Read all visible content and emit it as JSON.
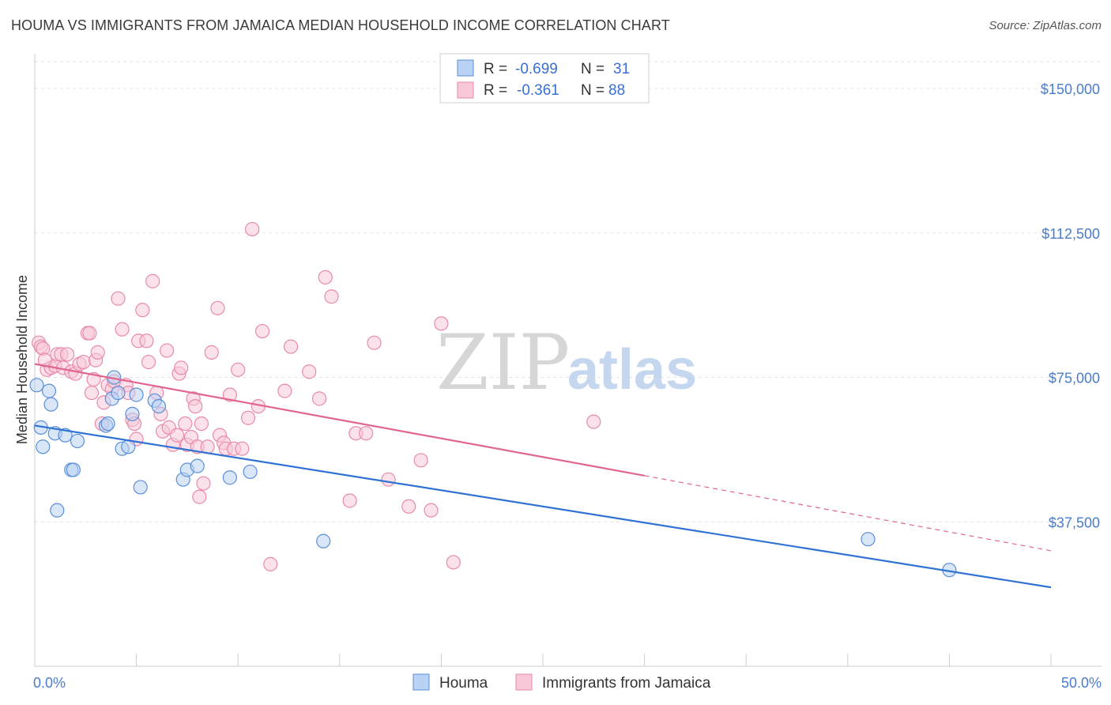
{
  "title": "HOUMA VS IMMIGRANTS FROM JAMAICA MEDIAN HOUSEHOLD INCOME CORRELATION CHART",
  "source": "Source: ZipAtlas.com",
  "watermark": {
    "zip": "ZIP",
    "atlas": "atlas"
  },
  "chart_data": {
    "type": "scatter",
    "title": "HOUMA VS IMMIGRANTS FROM JAMAICA MEDIAN HOUSEHOLD INCOME CORRELATION CHART",
    "xlabel": "",
    "ylabel": "Median Household Income",
    "xlim": [
      0,
      50
    ],
    "ylim": [
      0,
      157000
    ],
    "x_tick_labels": [
      {
        "value": 0,
        "label": "0.0%"
      },
      {
        "value": 50,
        "label": "50.0%"
      }
    ],
    "y_ticks": [
      {
        "value": 37500,
        "label": "$37,500"
      },
      {
        "value": 75000,
        "label": "$75,000"
      },
      {
        "value": 112500,
        "label": "$112,500"
      },
      {
        "value": 150000,
        "label": "$150,000"
      }
    ],
    "grid": true,
    "legend_placement": "top-center",
    "series": [
      {
        "name": "Houma",
        "color": "#5b8fd9",
        "fill": "#b9d2f3",
        "line_color": "#2f72d4",
        "R": "-0.699",
        "N": "31",
        "trend": {
          "x": [
            0,
            50
          ],
          "y": [
            62500,
            20500
          ]
        },
        "points": [
          [
            0.1,
            73000
          ],
          [
            0.4,
            57000
          ],
          [
            0.7,
            71500
          ],
          [
            0.8,
            68000
          ],
          [
            1.0,
            60500
          ],
          [
            1.1,
            40500
          ],
          [
            1.5,
            60000
          ],
          [
            1.8,
            51000
          ],
          [
            1.9,
            51000
          ],
          [
            2.1,
            58500
          ],
          [
            3.5,
            62500
          ],
          [
            3.6,
            63000
          ],
          [
            3.8,
            69500
          ],
          [
            3.9,
            75000
          ],
          [
            4.1,
            71000
          ],
          [
            4.3,
            56500
          ],
          [
            4.6,
            57000
          ],
          [
            4.8,
            65500
          ],
          [
            5.0,
            70500
          ],
          [
            5.2,
            46500
          ],
          [
            5.9,
            69000
          ],
          [
            6.1,
            67500
          ],
          [
            7.3,
            48500
          ],
          [
            7.5,
            51000
          ],
          [
            8.0,
            52000
          ],
          [
            9.6,
            49000
          ],
          [
            10.6,
            50500
          ],
          [
            14.2,
            32500
          ],
          [
            41.0,
            33000
          ],
          [
            45.0,
            25000
          ],
          [
            0.3,
            62000
          ]
        ]
      },
      {
        "name": "Immigrants from Jamaica",
        "color": "#e98aaa",
        "fill": "#f8c8d8",
        "line_color": "#e06690",
        "R": "-0.361",
        "N": "88",
        "trend": {
          "x": [
            0,
            30
          ],
          "y": [
            78500,
            49500
          ]
        },
        "trend_dashed": {
          "x": [
            30,
            50
          ],
          "y": [
            49500,
            30000
          ]
        },
        "points": [
          [
            0.2,
            84000
          ],
          [
            0.3,
            83000
          ],
          [
            0.4,
            82500
          ],
          [
            0.6,
            77000
          ],
          [
            0.8,
            77500
          ],
          [
            1.0,
            78000
          ],
          [
            1.1,
            81000
          ],
          [
            1.3,
            81000
          ],
          [
            1.4,
            77500
          ],
          [
            1.6,
            81000
          ],
          [
            1.8,
            76500
          ],
          [
            2.0,
            76000
          ],
          [
            2.2,
            78500
          ],
          [
            2.4,
            79000
          ],
          [
            2.6,
            86500
          ],
          [
            2.7,
            86500
          ],
          [
            2.8,
            71000
          ],
          [
            2.9,
            74500
          ],
          [
            3.0,
            79500
          ],
          [
            3.1,
            81500
          ],
          [
            3.3,
            63000
          ],
          [
            3.4,
            68500
          ],
          [
            3.6,
            73000
          ],
          [
            3.8,
            72000
          ],
          [
            3.9,
            74000
          ],
          [
            4.1,
            95500
          ],
          [
            4.3,
            87500
          ],
          [
            4.5,
            73000
          ],
          [
            4.6,
            71000
          ],
          [
            4.8,
            64000
          ],
          [
            4.9,
            63000
          ],
          [
            5.0,
            59000
          ],
          [
            5.1,
            84500
          ],
          [
            5.3,
            92500
          ],
          [
            5.5,
            84500
          ],
          [
            5.6,
            79000
          ],
          [
            5.8,
            100000
          ],
          [
            6.0,
            71000
          ],
          [
            6.2,
            65500
          ],
          [
            6.3,
            61000
          ],
          [
            6.5,
            82000
          ],
          [
            6.6,
            62000
          ],
          [
            6.8,
            57500
          ],
          [
            7.0,
            60000
          ],
          [
            7.1,
            76000
          ],
          [
            7.2,
            77500
          ],
          [
            7.4,
            63000
          ],
          [
            7.5,
            57500
          ],
          [
            7.7,
            59500
          ],
          [
            7.8,
            69500
          ],
          [
            7.9,
            67500
          ],
          [
            8.0,
            57000
          ],
          [
            8.1,
            44000
          ],
          [
            8.2,
            63000
          ],
          [
            8.3,
            47500
          ],
          [
            8.5,
            57000
          ],
          [
            8.7,
            81500
          ],
          [
            9.0,
            93000
          ],
          [
            9.1,
            60000
          ],
          [
            9.3,
            58000
          ],
          [
            9.4,
            56500
          ],
          [
            9.6,
            70500
          ],
          [
            9.8,
            56500
          ],
          [
            10.0,
            77000
          ],
          [
            10.2,
            56500
          ],
          [
            10.5,
            64500
          ],
          [
            10.7,
            113500
          ],
          [
            11.0,
            67500
          ],
          [
            11.2,
            87000
          ],
          [
            11.6,
            26500
          ],
          [
            12.3,
            71500
          ],
          [
            12.6,
            83000
          ],
          [
            13.5,
            76500
          ],
          [
            14.0,
            69500
          ],
          [
            14.3,
            101000
          ],
          [
            14.6,
            96000
          ],
          [
            15.5,
            43000
          ],
          [
            15.8,
            60500
          ],
          [
            16.3,
            60500
          ],
          [
            16.7,
            84000
          ],
          [
            17.4,
            48500
          ],
          [
            18.4,
            41500
          ],
          [
            19.0,
            53500
          ],
          [
            19.5,
            40500
          ],
          [
            20.0,
            89000
          ],
          [
            20.6,
            27000
          ],
          [
            27.5,
            63500
          ],
          [
            0.5,
            79500
          ]
        ]
      }
    ]
  },
  "legend": {
    "r_label": "R =",
    "n_label": "N =",
    "rows": [
      {
        "r": "-0.699",
        "n": "31"
      },
      {
        "r": "-0.361",
        "n": "88"
      }
    ]
  },
  "bottom_legend": [
    {
      "label": "Houma"
    },
    {
      "label": "Immigrants from Jamaica"
    }
  ]
}
